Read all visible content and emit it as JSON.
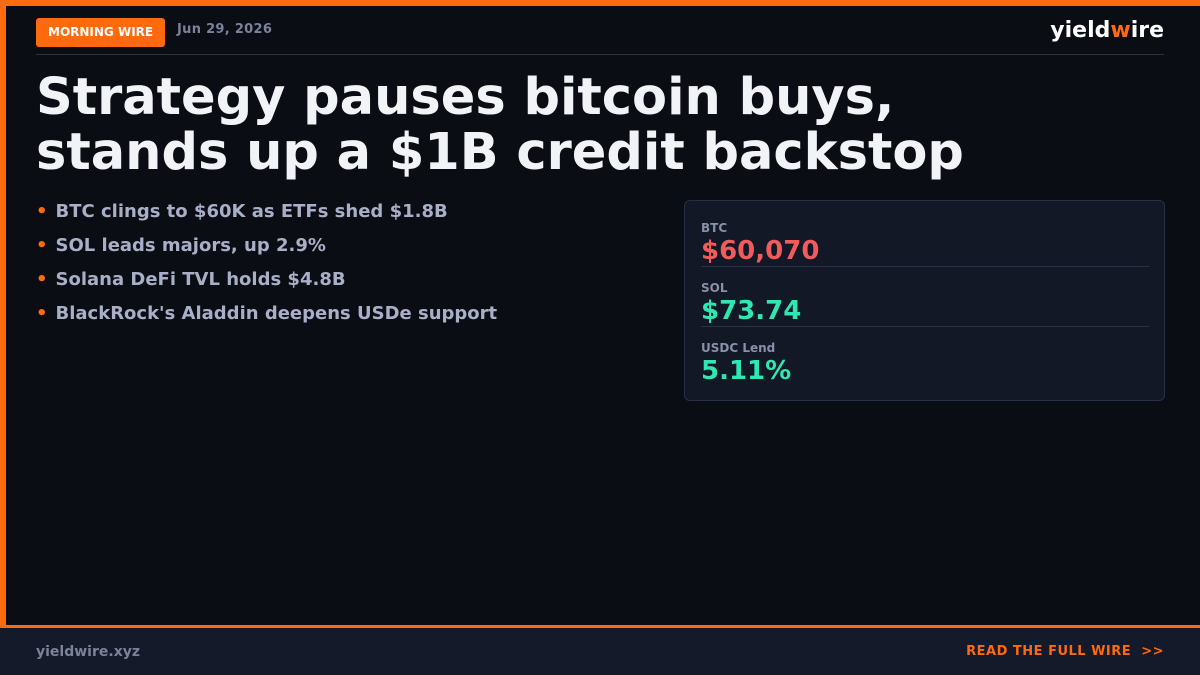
{
  "header": {
    "badge": "MORNING WIRE",
    "date": "Jun 29, 2026",
    "brand": [
      "yield",
      "w",
      "ire"
    ]
  },
  "headline": [
    "Strategy pauses bitcoin buys,",
    "stands up a $1B credit backstop"
  ],
  "bullets": [
    "BTC clings to $60K as ETFs shed $1.8B",
    "SOL leads majors, up 2.9%",
    "Solana DeFi TVL holds $4.8B",
    "BlackRock's Aladdin deepens USDe support"
  ],
  "stats": [
    {
      "label": "BTC",
      "value": "$60,070",
      "color": "#f25a5c"
    },
    {
      "label": "SOL",
      "value": "$73.74",
      "color": "#2ee8b2"
    },
    {
      "label": "USDC Lend",
      "value": "5.11%",
      "color": "#2ee8b2"
    }
  ],
  "footer": {
    "url": "yieldwire.xyz",
    "cta": "READ THE FULL WIRE  >>"
  }
}
